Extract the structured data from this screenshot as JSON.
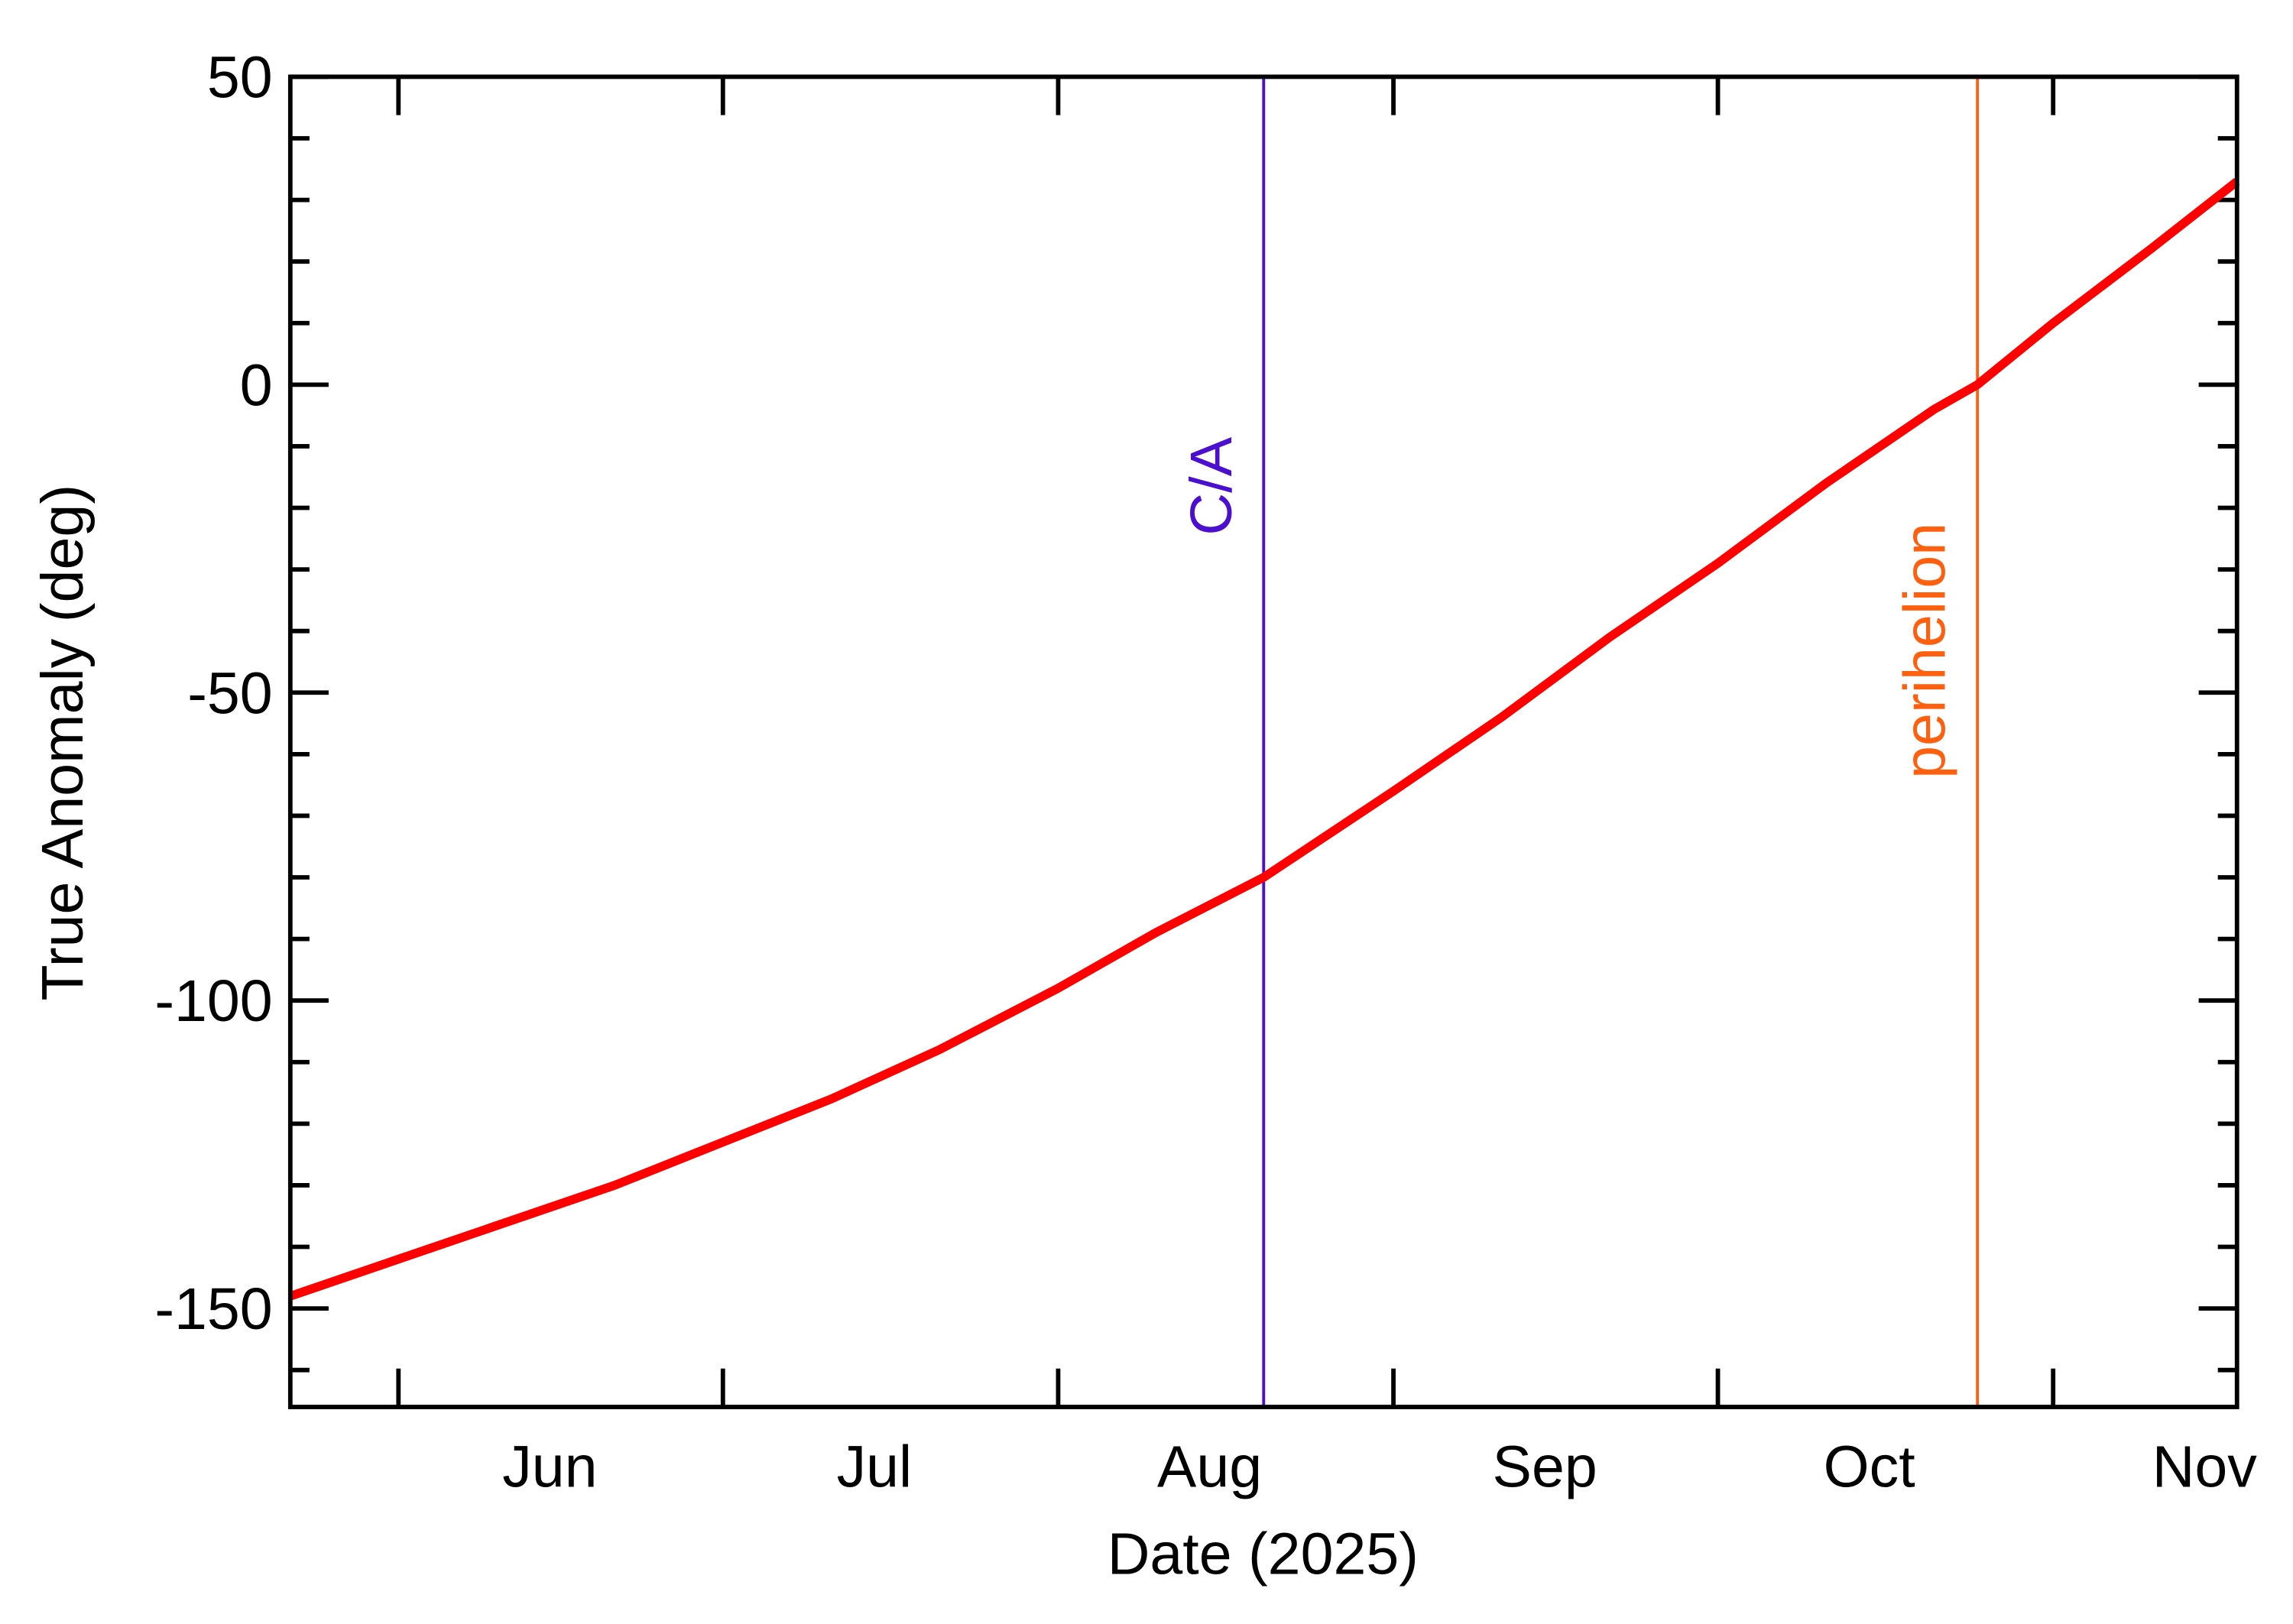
{
  "chart_data": {
    "type": "line",
    "xlabel": "Date (2025)",
    "ylabel": "True Anomaly (deg)",
    "x": [
      142,
      152,
      162,
      172,
      182,
      192,
      202,
      213,
      222,
      232,
      244,
      254,
      264,
      274,
      284,
      294,
      298,
      305,
      314,
      322
    ],
    "series": [
      {
        "color": "#ff0000",
        "values": [
          -148,
          -142,
          -136,
          -130,
          -123,
          -116,
          -108,
          -98,
          -89,
          -80,
          -66,
          -54,
          -41,
          -29,
          -16,
          -4,
          0,
          10,
          22,
          33
        ]
      }
    ],
    "xlim": [
      142,
      322
    ],
    "xticks": [
      {
        "value": 166,
        "label": "Jun"
      },
      {
        "value": 196,
        "label": "Jul"
      },
      {
        "value": 227,
        "label": "Aug"
      },
      {
        "value": 258,
        "label": "Sep"
      },
      {
        "value": 288,
        "label": "Oct"
      },
      {
        "value": 319,
        "label": "Nov"
      }
    ],
    "xminor_ticks": [
      152,
      182,
      213,
      244,
      274,
      305
    ],
    "ylim": [
      -166,
      50
    ],
    "yticks": [
      -150,
      -100,
      -50,
      0,
      50
    ],
    "yminor_ticks": [
      -160,
      -140,
      -130,
      -120,
      -110,
      -90,
      -80,
      -70,
      -60,
      -40,
      -30,
      -20,
      -10,
      10,
      20,
      30,
      40
    ],
    "vlines": [
      {
        "x": 232,
        "label": "C/A",
        "color": "#4b0fd0"
      },
      {
        "x": 298,
        "label": "perihelion",
        "color": "#ff6010"
      }
    ]
  }
}
